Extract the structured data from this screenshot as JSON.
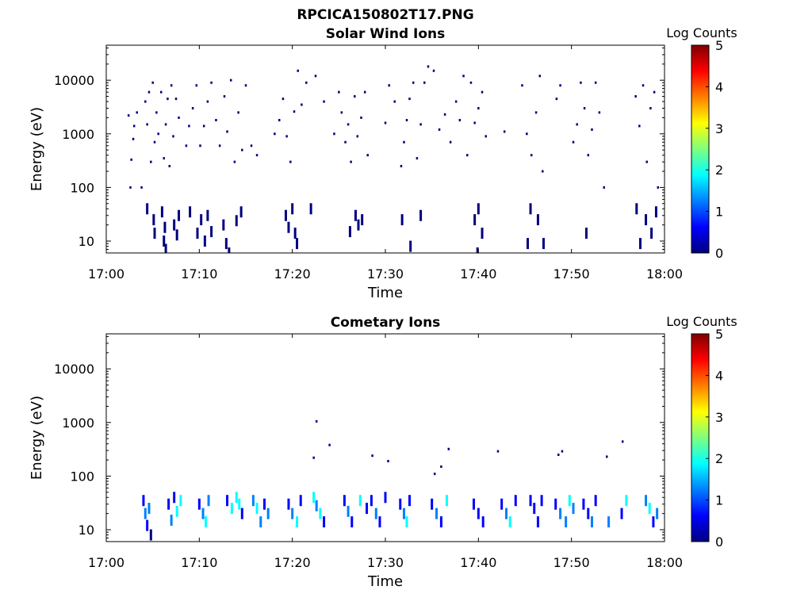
{
  "figure": {
    "title": "RPCICA150802T17.PNG"
  },
  "colors": {
    "colormap": [
      "#00007f",
      "#0000ff",
      "#007fff",
      "#00ffff",
      "#7fff7f",
      "#ffff00",
      "#ff7f00",
      "#ff0000",
      "#7f0000"
    ],
    "axis": "#000000",
    "background": "#ffffff"
  },
  "chart_data": [
    {
      "type": "heatmap",
      "title": "Solar Wind Ions",
      "xlabel": "Time",
      "ylabel": "Energy (eV)",
      "yscale": "log",
      "ylim": [
        6,
        45000
      ],
      "xlim": [
        "17:00",
        "18:00"
      ],
      "xticks": [
        "17:00",
        "17:10",
        "17:20",
        "17:30",
        "17:40",
        "17:50",
        "18:00"
      ],
      "yticks": [
        "10",
        "100",
        "1000",
        "10000"
      ],
      "colorbar": {
        "label": "Log Counts",
        "range": [
          0,
          5
        ],
        "ticks": [
          "0",
          "1",
          "2",
          "3",
          "4",
          "5"
        ]
      },
      "bursts_minutes": [
        5,
        10,
        13,
        19,
        26,
        33,
        40,
        46,
        52,
        58
      ],
      "points": [
        [
          2.4,
          2200,
          0.1
        ],
        [
          2.6,
          100,
          0.1
        ],
        [
          2.7,
          330,
          0.1
        ],
        [
          2.9,
          800,
          0.1
        ],
        [
          3.0,
          1400,
          0.1
        ],
        [
          3.3,
          2500,
          0.1
        ],
        [
          3.8,
          100,
          0.1
        ],
        [
          4.2,
          4000,
          0.1
        ],
        [
          4.4,
          1500,
          0.1
        ],
        [
          4.6,
          6000,
          0.1
        ],
        [
          4.8,
          300,
          0.1
        ],
        [
          5.0,
          9000,
          0.1
        ],
        [
          5.2,
          700,
          0.1
        ],
        [
          5.4,
          2500,
          0.1
        ],
        [
          5.6,
          1000,
          0.1
        ],
        [
          5.9,
          6000,
          0.1
        ],
        [
          6.2,
          350,
          0.1
        ],
        [
          6.4,
          1500,
          0.1
        ],
        [
          6.6,
          4500,
          0.1
        ],
        [
          6.8,
          250,
          0.1
        ],
        [
          7.0,
          8000,
          0.1
        ],
        [
          7.2,
          900,
          0.1
        ],
        [
          7.5,
          4500,
          0.1
        ],
        [
          7.8,
          2000,
          0.1
        ],
        [
          8.6,
          600,
          0.1
        ],
        [
          8.9,
          1400,
          0.1
        ],
        [
          9.3,
          3000,
          0.1
        ],
        [
          9.7,
          8000,
          0.1
        ],
        [
          10.1,
          600,
          0.1
        ],
        [
          10.5,
          1400,
          0.1
        ],
        [
          10.9,
          4000,
          0.1
        ],
        [
          11.3,
          9000,
          0.1
        ],
        [
          11.8,
          1800,
          0.1
        ],
        [
          12.2,
          600,
          0.1
        ],
        [
          12.7,
          5000,
          0.1
        ],
        [
          13.0,
          1100,
          0.1
        ],
        [
          13.4,
          10000,
          0.1
        ],
        [
          13.8,
          300,
          0.1
        ],
        [
          14.2,
          2500,
          0.1
        ],
        [
          14.6,
          500,
          0.1
        ],
        [
          15.0,
          8000,
          0.1
        ],
        [
          15.6,
          600,
          0.1
        ],
        [
          16.2,
          400,
          0.1
        ],
        [
          18.1,
          1000,
          0.1
        ],
        [
          18.6,
          1800,
          0.1
        ],
        [
          19.0,
          4500,
          0.1
        ],
        [
          19.4,
          900,
          0.1
        ],
        [
          19.8,
          300,
          0.1
        ],
        [
          20.2,
          2600,
          0.1
        ],
        [
          20.6,
          15000,
          0.1
        ],
        [
          21.0,
          3500,
          0.1
        ],
        [
          21.5,
          9000,
          0.1
        ],
        [
          22.5,
          12000,
          0.1
        ],
        [
          23.4,
          4000,
          0.1
        ],
        [
          24.5,
          1000,
          0.1
        ],
        [
          25.0,
          6000,
          0.1
        ],
        [
          25.3,
          2500,
          0.1
        ],
        [
          25.7,
          700,
          0.1
        ],
        [
          26.0,
          1500,
          0.1
        ],
        [
          26.3,
          300,
          0.1
        ],
        [
          26.7,
          5000,
          0.1
        ],
        [
          27.0,
          900,
          0.1
        ],
        [
          27.4,
          2000,
          0.1
        ],
        [
          27.8,
          6000,
          0.1
        ],
        [
          28.1,
          400,
          0.1
        ],
        [
          30.0,
          1600,
          0.1
        ],
        [
          30.4,
          8000,
          0.1
        ],
        [
          31.0,
          4000,
          0.1
        ],
        [
          31.7,
          250,
          0.1
        ],
        [
          32.0,
          700,
          0.1
        ],
        [
          32.3,
          1800,
          0.1
        ],
        [
          32.6,
          4500,
          0.1
        ],
        [
          33.0,
          9000,
          0.1
        ],
        [
          33.4,
          350,
          0.1
        ],
        [
          33.8,
          1500,
          0.1
        ],
        [
          34.2,
          9000,
          0.1
        ],
        [
          34.6,
          18000,
          0.1
        ],
        [
          35.2,
          15000,
          0.1
        ],
        [
          35.8,
          1200,
          0.1
        ],
        [
          36.4,
          2300,
          0.1
        ],
        [
          37.0,
          700,
          0.1
        ],
        [
          37.6,
          4000,
          0.1
        ],
        [
          38.0,
          1800,
          0.1
        ],
        [
          38.4,
          12000,
          0.1
        ],
        [
          38.8,
          400,
          0.1
        ],
        [
          39.2,
          9000,
          0.1
        ],
        [
          39.6,
          1600,
          0.1
        ],
        [
          40.0,
          3000,
          0.1
        ],
        [
          40.4,
          6000,
          0.1
        ],
        [
          40.8,
          900,
          0.1
        ],
        [
          42.8,
          1100,
          0.1
        ],
        [
          44.7,
          8000,
          0.1
        ],
        [
          45.2,
          1000,
          0.1
        ],
        [
          45.7,
          400,
          0.1
        ],
        [
          46.2,
          2500,
          0.1
        ],
        [
          46.6,
          12000,
          0.1
        ],
        [
          46.9,
          200,
          0.1
        ],
        [
          48.4,
          4500,
          0.1
        ],
        [
          48.8,
          8000,
          0.1
        ],
        [
          50.2,
          700,
          0.1
        ],
        [
          50.6,
          1500,
          0.1
        ],
        [
          51.0,
          9000,
          0.1
        ],
        [
          51.4,
          3000,
          0.1
        ],
        [
          51.8,
          400,
          0.1
        ],
        [
          52.2,
          1200,
          0.1
        ],
        [
          52.6,
          9000,
          0.1
        ],
        [
          53.0,
          2500,
          0.1
        ],
        [
          53.5,
          100,
          0.1
        ],
        [
          56.9,
          5000,
          0.1
        ],
        [
          57.3,
          1400,
          0.1
        ],
        [
          57.7,
          8000,
          0.1
        ],
        [
          58.1,
          300,
          0.1
        ],
        [
          58.5,
          3000,
          0.1
        ],
        [
          58.9,
          6000,
          0.1
        ],
        [
          59.3,
          100,
          0.1
        ],
        [
          4.4,
          40,
          0.1
        ],
        [
          5.1,
          25,
          0.2
        ],
        [
          5.2,
          14,
          0.2
        ],
        [
          6.0,
          35,
          0.2
        ],
        [
          6.2,
          10,
          0.2
        ],
        [
          6.3,
          18,
          0.2
        ],
        [
          6.4,
          7,
          0.2
        ],
        [
          7.3,
          20,
          0.2
        ],
        [
          7.6,
          13,
          0.2
        ],
        [
          7.8,
          30,
          0.2
        ],
        [
          9.0,
          35,
          0.2
        ],
        [
          9.8,
          14,
          0.2
        ],
        [
          10.2,
          25,
          0.2
        ],
        [
          10.6,
          10,
          0.2
        ],
        [
          10.9,
          30,
          0.2
        ],
        [
          11.3,
          15,
          0.2
        ],
        [
          12.6,
          20,
          0.2
        ],
        [
          12.9,
          9,
          0.2
        ],
        [
          13.2,
          6,
          0.2
        ],
        [
          14.0,
          24,
          0.2
        ],
        [
          14.5,
          35,
          0.2
        ],
        [
          19.3,
          30,
          0.2
        ],
        [
          19.6,
          18,
          0.2
        ],
        [
          20.0,
          40,
          0.2
        ],
        [
          20.3,
          14,
          0.2
        ],
        [
          20.5,
          9,
          0.2
        ],
        [
          22.0,
          40,
          0.2
        ],
        [
          26.2,
          15,
          0.2
        ],
        [
          26.8,
          30,
          0.2
        ],
        [
          27.1,
          20,
          0.2
        ],
        [
          27.5,
          25,
          0.2
        ],
        [
          31.8,
          25,
          0.2
        ],
        [
          32.7,
          8,
          0.2
        ],
        [
          33.8,
          30,
          0.2
        ],
        [
          39.6,
          25,
          0.2
        ],
        [
          40.0,
          40,
          0.2
        ],
        [
          40.4,
          14,
          0.2
        ],
        [
          39.9,
          6,
          0.2
        ],
        [
          45.3,
          9,
          0.2
        ],
        [
          45.6,
          40,
          0.2
        ],
        [
          46.4,
          25,
          0.2
        ],
        [
          47.0,
          9,
          0.2
        ],
        [
          51.6,
          14,
          0.2
        ],
        [
          57.0,
          40,
          0.2
        ],
        [
          57.4,
          9,
          0.2
        ],
        [
          58.0,
          25,
          0.2
        ],
        [
          58.6,
          14,
          0.2
        ],
        [
          59.1,
          35,
          0.2
        ]
      ]
    },
    {
      "type": "heatmap",
      "title": "Cometary Ions",
      "xlabel": "Time",
      "ylabel": "Energy (eV)",
      "yscale": "log",
      "ylim": [
        6,
        45000
      ],
      "xlim": [
        "17:00",
        "18:00"
      ],
      "xticks": [
        "17:00",
        "17:10",
        "17:20",
        "17:30",
        "17:40",
        "17:50",
        "18:00"
      ],
      "yticks": [
        "10",
        "100",
        "1000",
        "10000"
      ],
      "colorbar": {
        "label": "Log Counts",
        "range": [
          0,
          5
        ],
        "ticks": [
          "0",
          "1",
          "2",
          "3",
          "4",
          "5"
        ]
      },
      "points": [
        [
          22.3,
          220,
          0.2
        ],
        [
          22.6,
          1050,
          0.2
        ],
        [
          24.0,
          380,
          0.2
        ],
        [
          28.6,
          240,
          0.2
        ],
        [
          30.3,
          190,
          0.2
        ],
        [
          35.3,
          110,
          0.2
        ],
        [
          36.0,
          150,
          0.2
        ],
        [
          36.8,
          320,
          0.2
        ],
        [
          42.1,
          290,
          0.2
        ],
        [
          48.6,
          250,
          0.2
        ],
        [
          49.0,
          290,
          0.2
        ],
        [
          53.8,
          230,
          0.2
        ],
        [
          55.5,
          440,
          0.2
        ],
        [
          4.0,
          35,
          0.6
        ],
        [
          4.2,
          20,
          1.0
        ],
        [
          4.4,
          12,
          0.8
        ],
        [
          4.6,
          25,
          1.3
        ],
        [
          4.8,
          8,
          0.2
        ],
        [
          6.7,
          30,
          0.6
        ],
        [
          7.0,
          15,
          1.0
        ],
        [
          7.3,
          40,
          0.8
        ],
        [
          7.6,
          22,
          1.6
        ],
        [
          8.0,
          35,
          1.8
        ],
        [
          10.0,
          30,
          0.7
        ],
        [
          10.4,
          20,
          1.4
        ],
        [
          10.7,
          14,
          1.8
        ],
        [
          11.0,
          35,
          1.2
        ],
        [
          13.0,
          35,
          0.9
        ],
        [
          13.5,
          25,
          1.6
        ],
        [
          14.0,
          40,
          1.9
        ],
        [
          14.3,
          30,
          2.0
        ],
        [
          14.6,
          20,
          0.8
        ],
        [
          15.8,
          35,
          1.0
        ],
        [
          16.2,
          25,
          1.8
        ],
        [
          16.6,
          14,
          1.5
        ],
        [
          17.0,
          30,
          0.7
        ],
        [
          17.4,
          20,
          1.2
        ],
        [
          19.6,
          30,
          0.8
        ],
        [
          20.0,
          20,
          1.4
        ],
        [
          20.5,
          14,
          1.9
        ],
        [
          20.9,
          35,
          0.9
        ],
        [
          22.3,
          40,
          1.9
        ],
        [
          22.6,
          28,
          1.5
        ],
        [
          23.0,
          20,
          2.0
        ],
        [
          23.4,
          14,
          0.8
        ],
        [
          25.6,
          35,
          0.7
        ],
        [
          26.0,
          22,
          1.0
        ],
        [
          26.4,
          14,
          0.6
        ],
        [
          27.3,
          35,
          1.8
        ],
        [
          28.0,
          25,
          0.6
        ],
        [
          28.5,
          35,
          0.8
        ],
        [
          29.0,
          20,
          1.2
        ],
        [
          29.4,
          14,
          0.7
        ],
        [
          30.0,
          40,
          0.9
        ],
        [
          31.6,
          30,
          0.8
        ],
        [
          32.0,
          20,
          1.4
        ],
        [
          32.3,
          14,
          1.6
        ],
        [
          32.6,
          35,
          0.7
        ],
        [
          35.0,
          30,
          0.8
        ],
        [
          35.5,
          20,
          1.0
        ],
        [
          36.0,
          14,
          0.7
        ],
        [
          36.6,
          35,
          1.8
        ],
        [
          39.5,
          30,
          0.8
        ],
        [
          40.0,
          20,
          0.7
        ],
        [
          40.5,
          14,
          0.6
        ],
        [
          42.5,
          30,
          0.8
        ],
        [
          43.0,
          20,
          1.0
        ],
        [
          43.4,
          14,
          1.6
        ],
        [
          44.0,
          35,
          0.7
        ],
        [
          45.6,
          35,
          0.8
        ],
        [
          46.0,
          25,
          0.9
        ],
        [
          46.4,
          14,
          0.7
        ],
        [
          46.8,
          35,
          0.8
        ],
        [
          48.3,
          30,
          0.7
        ],
        [
          48.8,
          20,
          1.2
        ],
        [
          49.4,
          14,
          1.4
        ],
        [
          49.8,
          35,
          2.0
        ],
        [
          50.2,
          25,
          1.2
        ],
        [
          51.3,
          30,
          0.7
        ],
        [
          51.8,
          20,
          0.8
        ],
        [
          52.2,
          14,
          1.0
        ],
        [
          52.6,
          35,
          0.7
        ],
        [
          54.0,
          14,
          1.2
        ],
        [
          55.4,
          20,
          0.8
        ],
        [
          55.9,
          35,
          1.6
        ],
        [
          58.0,
          35,
          1.4
        ],
        [
          58.4,
          25,
          1.8
        ],
        [
          58.8,
          14,
          0.7
        ],
        [
          59.2,
          20,
          1.2
        ]
      ]
    }
  ]
}
